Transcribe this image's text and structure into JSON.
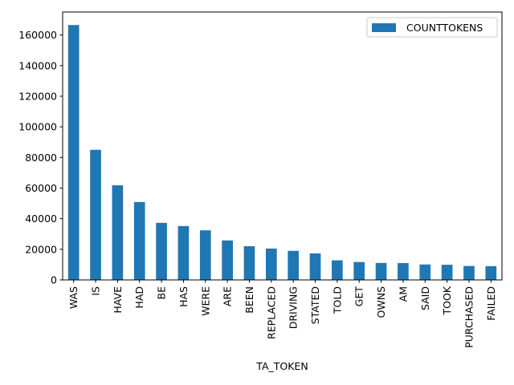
{
  "chart_data": {
    "type": "bar",
    "title": "",
    "xlabel": "TA_TOKEN",
    "ylabel": "",
    "ylim": [
      0,
      175000
    ],
    "yticks": [
      0,
      20000,
      40000,
      60000,
      80000,
      100000,
      120000,
      140000,
      160000
    ],
    "ytick_labels": [
      "0",
      "20000",
      "40000",
      "60000",
      "80000",
      "100000",
      "120000",
      "140000",
      "160000"
    ],
    "categories": [
      "WAS",
      "IS",
      "HAVE",
      "HAD",
      "BE",
      "HAS",
      "WERE",
      "ARE",
      "BEEN",
      "REPLACED",
      "DRIVING",
      "STATED",
      "TOLD",
      "GET",
      "OWNS",
      "AM",
      "SAID",
      "TOOK",
      "PURCHASED",
      "FAILED"
    ],
    "series": [
      {
        "name": "COUNTTOKENS",
        "color": "#1f77b4",
        "values": [
          166500,
          85000,
          61800,
          50900,
          37300,
          35200,
          32400,
          25800,
          22000,
          20500,
          19000,
          17300,
          12800,
          11700,
          11100,
          11000,
          10100,
          9900,
          9100,
          9000
        ]
      }
    ],
    "legend_position": "top-right",
    "grid": false
  }
}
